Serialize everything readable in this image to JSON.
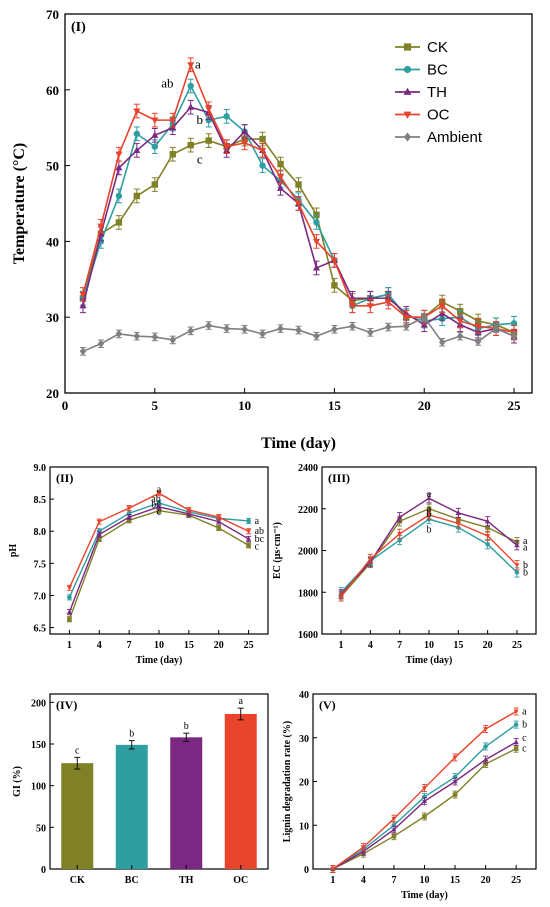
{
  "chart_data": [
    {
      "id": "I",
      "type": "line",
      "panel_label": "(I)",
      "xlabel": "Time (day)",
      "ylabel": "Temperature (°C)",
      "xlim": [
        0,
        26
      ],
      "ylim": [
        20,
        70
      ],
      "xticks": [
        0,
        5,
        10,
        15,
        20,
        25
      ],
      "yticks": [
        20,
        30,
        40,
        50,
        60,
        70
      ],
      "legend_position": "top-right",
      "x": [
        1,
        2,
        3,
        4,
        5,
        6,
        7,
        8,
        9,
        10,
        11,
        12,
        13,
        14,
        15,
        16,
        17,
        18,
        19,
        20,
        21,
        22,
        23,
        24,
        25
      ],
      "series": [
        {
          "name": "CK",
          "color": "#808026",
          "marker": "square",
          "values": [
            32.5,
            41,
            42.5,
            46,
            47.5,
            51.5,
            52.7,
            53.3,
            52.5,
            53.5,
            53.5,
            50.2,
            47.5,
            43.5,
            34.2,
            32.2,
            32.5,
            33,
            30,
            30,
            32,
            30.8,
            29.5,
            29,
            28
          ]
        },
        {
          "name": "BC",
          "color": "#2e9ea1",
          "marker": "circle",
          "values": [
            32.5,
            40,
            46,
            54.2,
            52.5,
            55.5,
            60.5,
            56,
            56.5,
            54.5,
            50,
            48,
            45.5,
            42.5,
            37.5,
            31.5,
            32.5,
            33,
            30.2,
            29.5,
            29.8,
            30,
            28.5,
            29,
            29.2
          ]
        },
        {
          "name": "TH",
          "color": "#7b2882",
          "marker": "triangle",
          "values": [
            31.5,
            41,
            49.7,
            52,
            54,
            55,
            57.7,
            57,
            52,
            54.5,
            52,
            47,
            45,
            36.5,
            37.5,
            32.5,
            32.5,
            32.5,
            30.5,
            29,
            30.5,
            29,
            28,
            28.5,
            27.5
          ]
        },
        {
          "name": "OC",
          "color": "#e8432b",
          "marker": "triangle-down",
          "values": [
            33,
            42,
            51.5,
            57.2,
            56,
            56,
            63.3,
            57.5,
            52.5,
            53,
            52,
            48.5,
            45,
            40,
            37.5,
            31.5,
            31.5,
            32,
            30,
            30,
            31.5,
            29.5,
            28.8,
            28.5,
            28
          ]
        },
        {
          "name": "Ambient",
          "color": "#808080",
          "marker": "diamond",
          "values": [
            25.5,
            26.5,
            27.8,
            27.5,
            27.4,
            27,
            28.2,
            28.9,
            28.5,
            28.4,
            27.8,
            28.5,
            28.3,
            27.5,
            28.4,
            28.8,
            28,
            28.7,
            28.8,
            30,
            26.7,
            27.5,
            26.8,
            28.5,
            27.5
          ]
        }
      ],
      "annotations": [
        {
          "text": "a",
          "x": 7.4,
          "y": 62.8
        },
        {
          "text": "ab",
          "x": 5.7,
          "y": 60.3
        },
        {
          "text": "b",
          "x": 7.5,
          "y": 55.5
        },
        {
          "text": "c",
          "x": 7.5,
          "y": 50.3
        }
      ]
    },
    {
      "id": "II",
      "type": "line",
      "panel_label": "(II)",
      "xlabel": "Time (day)",
      "ylabel": "pH",
      "categories": [
        "1",
        "4",
        "7",
        "10",
        "15",
        "20",
        "25"
      ],
      "ylim": [
        6.4,
        9.0
      ],
      "yticks": [
        6.5,
        7.0,
        7.5,
        8.0,
        8.5,
        9.0
      ],
      "series": [
        {
          "name": "CK",
          "color": "#808026",
          "values": [
            6.63,
            7.88,
            8.17,
            8.32,
            8.25,
            8.05,
            7.78
          ]
        },
        {
          "name": "BC",
          "color": "#2e9ea1",
          "values": [
            6.97,
            8.0,
            8.28,
            8.44,
            8.3,
            8.2,
            8.16
          ]
        },
        {
          "name": "TH",
          "color": "#7b2882",
          "values": [
            6.74,
            7.95,
            8.22,
            8.38,
            8.27,
            8.15,
            7.88
          ]
        },
        {
          "name": "OC",
          "color": "#e8432b",
          "values": [
            7.12,
            8.15,
            8.36,
            8.59,
            8.33,
            8.22,
            8.0
          ]
        }
      ],
      "annotations": [
        {
          "text": "a",
          "cat": "10",
          "y": 8.65
        },
        {
          "text": "ab",
          "cat": "10",
          "y": 8.5
        },
        {
          "text": "bc",
          "cat": "10",
          "y": 8.42
        },
        {
          "text": "c",
          "cat": "10",
          "y": 8.3
        },
        {
          "text": "a",
          "cat": "25",
          "y": 8.16
        },
        {
          "text": "ab",
          "cat": "25",
          "y": 8.0
        },
        {
          "text": "bc",
          "cat": "25",
          "y": 7.88
        },
        {
          "text": "c",
          "cat": "25",
          "y": 7.76
        }
      ]
    },
    {
      "id": "III",
      "type": "line",
      "panel_label": "(III)",
      "xlabel": "Time (day)",
      "ylabel": "EC (μs·cm⁻¹)",
      "categories": [
        "1",
        "4",
        "7",
        "10",
        "15",
        "20",
        "25"
      ],
      "ylim": [
        1600,
        2400
      ],
      "yticks": [
        1600,
        1800,
        2000,
        2200,
        2400
      ],
      "series": [
        {
          "name": "CK",
          "color": "#808026",
          "values": [
            1780,
            1940,
            2140,
            2200,
            2150,
            2110,
            2040
          ]
        },
        {
          "name": "BC",
          "color": "#2e9ea1",
          "values": [
            1800,
            1950,
            2050,
            2150,
            2110,
            2030,
            1895
          ]
        },
        {
          "name": "TH",
          "color": "#7b2882",
          "values": [
            1790,
            1945,
            2160,
            2250,
            2180,
            2140,
            2025
          ]
        },
        {
          "name": "OC",
          "color": "#e8432b",
          "values": [
            1780,
            1960,
            2080,
            2170,
            2130,
            2070,
            1930
          ]
        }
      ],
      "annotations": [
        {
          "text": "a",
          "cat": "10",
          "y": 2270
        },
        {
          "text": "a",
          "cat": "10",
          "y": 2200
        },
        {
          "text": "b",
          "cat": "10",
          "y": 2175
        },
        {
          "text": "b",
          "cat": "10",
          "y": 2100
        },
        {
          "text": "a",
          "cat": "25",
          "y": 2045
        },
        {
          "text": "a",
          "cat": "25",
          "y": 2015
        },
        {
          "text": "b",
          "cat": "25",
          "y": 1930
        },
        {
          "text": "b",
          "cat": "25",
          "y": 1895
        }
      ]
    },
    {
      "id": "IV",
      "type": "bar",
      "panel_label": "(IV)",
      "xlabel": "",
      "ylabel": "GI (%)",
      "categories": [
        "CK",
        "BC",
        "TH",
        "OC"
      ],
      "values": [
        127,
        149,
        158,
        186
      ],
      "errors": [
        7,
        5,
        5,
        7
      ],
      "colors": [
        "#808026",
        "#2e9ea1",
        "#7b2882",
        "#e8432b"
      ],
      "letters": [
        "c",
        "b",
        "b",
        "a"
      ],
      "ylim": [
        0,
        210
      ],
      "yticks": [
        0,
        50,
        100,
        150,
        200
      ]
    },
    {
      "id": "V",
      "type": "line",
      "panel_label": "(V)",
      "xlabel": "Time (day)",
      "ylabel": "Lignin degradation rate (%)",
      "categories": [
        "1",
        "4",
        "7",
        "10",
        "15",
        "20",
        "25"
      ],
      "ylim": [
        0,
        40
      ],
      "yticks": [
        0,
        10,
        20,
        30,
        40
      ],
      "series": [
        {
          "name": "CK",
          "color": "#808026",
          "values": [
            0,
            3.5,
            7.5,
            12,
            17,
            24,
            27.5
          ]
        },
        {
          "name": "BC",
          "color": "#2e9ea1",
          "values": [
            0,
            4.5,
            10,
            16.5,
            21,
            28,
            33
          ]
        },
        {
          "name": "TH",
          "color": "#7b2882",
          "values": [
            0,
            4,
            9,
            15.5,
            20,
            25,
            29
          ]
        },
        {
          "name": "OC",
          "color": "#e8432b",
          "values": [
            0,
            5,
            11.5,
            18.5,
            25.5,
            32,
            36
          ]
        }
      ],
      "annotations": [
        {
          "text": "a",
          "cat": "25",
          "y": 36
        },
        {
          "text": "b",
          "cat": "25",
          "y": 33
        },
        {
          "text": "c",
          "cat": "25",
          "y": 30
        },
        {
          "text": "c",
          "cat": "25",
          "y": 27.5
        }
      ]
    }
  ]
}
